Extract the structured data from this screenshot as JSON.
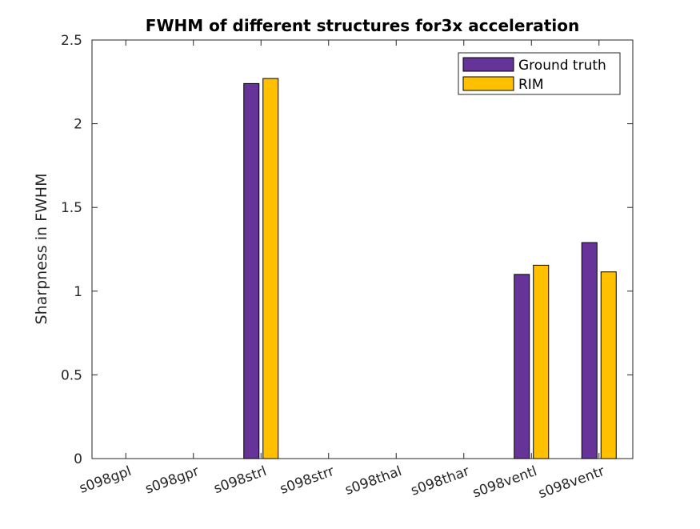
{
  "chart_data": {
    "type": "bar",
    "title": "FWHM of different structures for3x acceleration",
    "xlabel": "",
    "ylabel": "Sharpness in FWHM",
    "ylim": [
      0,
      2.5
    ],
    "yticks": [
      "0",
      "0.5",
      "1",
      "1.5",
      "2",
      "2.5"
    ],
    "categories": [
      "s098gpl",
      "s098gpr",
      "s098strl",
      "s098strr",
      "s098thal",
      "s098thar",
      "s098ventl",
      "s098ventr"
    ],
    "series": [
      {
        "name": "Ground truth",
        "color": "#663399",
        "values": [
          0,
          0,
          2.24,
          0,
          0,
          0,
          1.1,
          1.29
        ]
      },
      {
        "name": "RIM",
        "color": "#FFC000",
        "values": [
          0,
          0,
          2.27,
          0,
          0,
          0,
          1.155,
          1.115
        ]
      }
    ],
    "legend": {
      "placement": "top-right"
    },
    "grid": false
  }
}
